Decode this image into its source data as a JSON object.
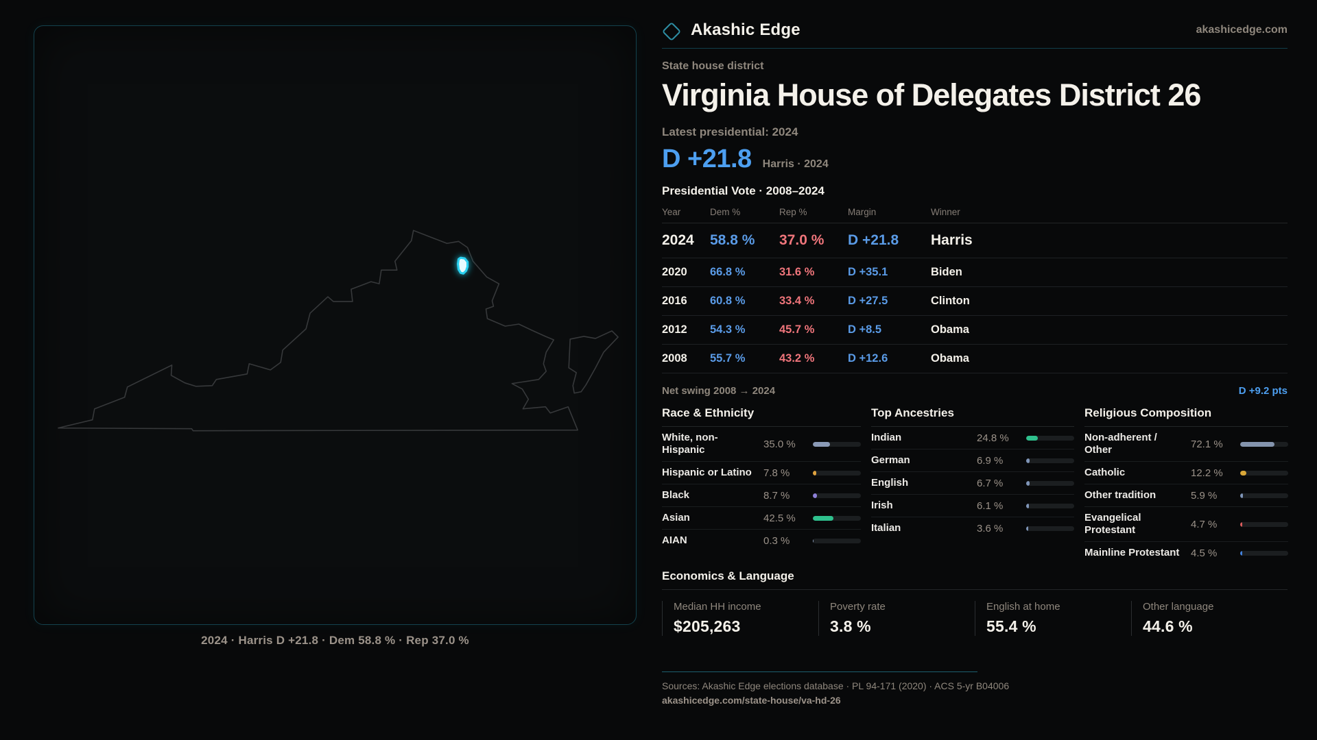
{
  "brand": {
    "name": "Akashic Edge",
    "site": "akashicedge.com"
  },
  "page": {
    "kicker": "State house district",
    "title": "Virginia House of Delegates District 26",
    "latest_label": "Latest presidential: 2024",
    "headline_margin": "D +21.8",
    "headline_sub": "Harris · 2024"
  },
  "map": {
    "caption": "2024 · Harris D +21.8 · Dem 58.8 % · Rep 37.0 %",
    "highlight_color": "#2bd1f1",
    "outline_color": "#37393b"
  },
  "colors": {
    "dem_blue": "#5a9be7",
    "rep_red": "#ef757b",
    "accent_teal": "#2e8fa5"
  },
  "vote_table": {
    "title": "Presidential Vote · 2008–2024",
    "columns": [
      "Year",
      "Dem %",
      "Rep %",
      "Margin",
      "Winner"
    ],
    "rows": [
      {
        "year": "2024",
        "dem": "58.8 %",
        "rep": "37.0 %",
        "margin": "D +21.8",
        "winner": "Harris",
        "emphasis": true
      },
      {
        "year": "2020",
        "dem": "66.8 %",
        "rep": "31.6 %",
        "margin": "D +35.1",
        "winner": "Biden",
        "emphasis": false
      },
      {
        "year": "2016",
        "dem": "60.8 %",
        "rep": "33.4 %",
        "margin": "D +27.5",
        "winner": "Clinton",
        "emphasis": false
      },
      {
        "year": "2012",
        "dem": "54.3 %",
        "rep": "45.7 %",
        "margin": "D +8.5",
        "winner": "Obama",
        "emphasis": false
      },
      {
        "year": "2008",
        "dem": "55.7 %",
        "rep": "43.2 %",
        "margin": "D +12.6",
        "winner": "Obama",
        "emphasis": false
      }
    ],
    "net_swing_label": "Net swing 2008 → 2024",
    "net_swing_value": "D +9.2 pts"
  },
  "demographics": {
    "race": {
      "title": "Race & Ethnicity",
      "rows": [
        {
          "label": "White, non-Hispanic",
          "value": "35.0 %",
          "pct": 35.0,
          "color": "#8a9ab6"
        },
        {
          "label": "Hispanic or Latino",
          "value": "7.8 %",
          "pct": 7.8,
          "color": "#dfa23f"
        },
        {
          "label": "Black",
          "value": "8.7 %",
          "pct": 8.7,
          "color": "#8d80d8"
        },
        {
          "label": "Asian",
          "value": "42.5 %",
          "pct": 42.5,
          "color": "#2fc08d"
        },
        {
          "label": "AIAN",
          "value": "0.3 %",
          "pct": 0.3,
          "color": "#8a9ab6"
        }
      ]
    },
    "ancestries": {
      "title": "Top Ancestries",
      "rows": [
        {
          "label": "Indian",
          "value": "24.8 %",
          "pct": 24.8,
          "color": "#2fc08d"
        },
        {
          "label": "German",
          "value": "6.9 %",
          "pct": 6.9,
          "color": "#7f95b8"
        },
        {
          "label": "English",
          "value": "6.7 %",
          "pct": 6.7,
          "color": "#7f95b8"
        },
        {
          "label": "Irish",
          "value": "6.1 %",
          "pct": 6.1,
          "color": "#7f95b8"
        },
        {
          "label": "Italian",
          "value": "3.6 %",
          "pct": 3.6,
          "color": "#7f95b8"
        }
      ]
    },
    "religion": {
      "title": "Religious Composition",
      "rows": [
        {
          "label": "Non-adherent / Other",
          "value": "72.1 %",
          "pct": 72.1,
          "color": "#8494ad"
        },
        {
          "label": "Catholic",
          "value": "12.2 %",
          "pct": 12.2,
          "color": "#d9a738"
        },
        {
          "label": "Other tradition",
          "value": "5.9 %",
          "pct": 5.9,
          "color": "#7f95b8"
        },
        {
          "label": "Evangelical Protestant",
          "value": "4.7 %",
          "pct": 4.7,
          "color": "#d95c5c"
        },
        {
          "label": "Mainline Protestant",
          "value": "4.5 %",
          "pct": 4.5,
          "color": "#4382dd"
        }
      ]
    }
  },
  "economics": {
    "title": "Economics & Language",
    "stats": [
      {
        "label": "Median HH income",
        "value": "$205,263"
      },
      {
        "label": "Poverty rate",
        "value": "3.8 %"
      },
      {
        "label": "English at home",
        "value": "55.4 %"
      },
      {
        "label": "Other language",
        "value": "44.6 %"
      }
    ]
  },
  "footer": {
    "sources": "Sources: Akashic Edge elections database · PL 94-171 (2020) · ACS 5-yr B04006",
    "permalink": "akashicedge.com/state-house/va-hd-26"
  }
}
